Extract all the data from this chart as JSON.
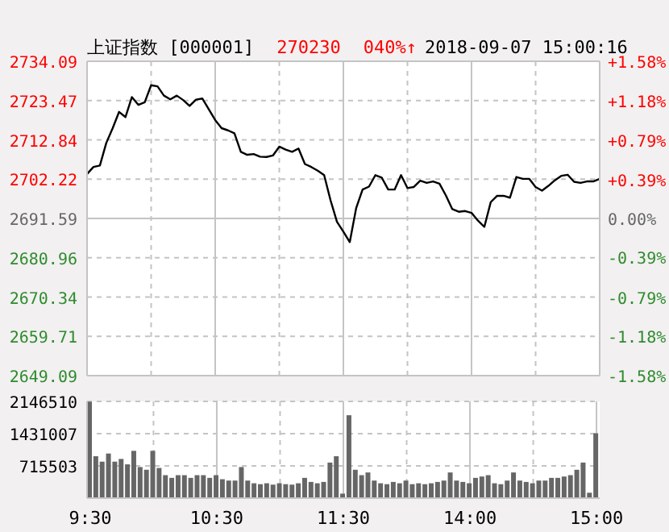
{
  "chart_data": [
    {
      "type": "line",
      "title": "上证指数 [000001]",
      "annotations": [
        "270230",
        "040%↑",
        "2018-09-07 15:00:16"
      ],
      "categories": [
        null,
        null,
        null,
        null,
        null,
        null,
        null,
        null,
        null,
        null,
        null,
        null,
        null,
        null,
        null,
        null,
        null,
        null,
        null,
        null,
        null,
        null,
        null,
        null,
        null,
        null,
        null,
        null,
        null,
        null,
        null,
        null,
        null,
        null,
        null,
        null,
        null,
        null,
        null,
        null,
        null,
        null,
        null,
        null,
        null,
        null,
        null,
        null,
        null,
        null,
        null,
        null,
        null,
        null,
        null,
        null,
        null,
        null,
        null,
        null,
        null,
        null,
        null,
        null,
        null,
        null,
        null,
        null,
        null,
        null,
        null,
        null,
        null,
        null,
        null,
        null,
        null,
        null,
        null,
        null,
        null
      ],
      "series": [
        {
          "color": "#000000",
          "values": [
            2703.6,
            2705.5,
            2705.9,
            2712.0,
            2716.0,
            2720.4,
            2719.0,
            2724.4,
            2722.3,
            2723.0,
            2727.6,
            2727.3,
            2724.8,
            2723.8,
            2724.8,
            2723.6,
            2722.0,
            2723.7,
            2724.0,
            2721.1,
            2718.2,
            2716.0,
            2715.4,
            2714.6,
            2709.6,
            2708.8,
            2709.0,
            2708.3,
            2708.2,
            2708.6,
            2711.0,
            2710.2,
            2709.6,
            2710.5,
            2706.3,
            2705.5,
            2704.5,
            2703.3,
            2696.5,
            2690.7,
            2688.0,
            2685.2,
            2694.4,
            2699.4,
            2700.2,
            2703.3,
            2702.6,
            2699.4,
            2699.4,
            2703.3,
            2699.8,
            2700.1,
            2701.8,
            2701.2,
            2701.6,
            2701.0,
            2697.8,
            2694.1,
            2693.4,
            2693.6,
            2693.1,
            2691.0,
            2689.3,
            2696.0,
            2697.7,
            2697.7,
            2697.2,
            2702.8,
            2702.3,
            2702.3,
            2700.1,
            2699.1,
            2700.4,
            2701.9,
            2703.1,
            2703.4,
            2701.5,
            2701.2,
            2701.6,
            2701.6,
            2702.3
          ]
        }
      ],
      "ylim": [
        2649.09,
        2734.09
      ],
      "yticks": [
        2649.09,
        2659.71,
        2670.34,
        2680.96,
        2691.59,
        2702.22,
        2712.84,
        2723.47,
        2734.09
      ],
      "y2lim": [
        -1.58,
        1.58
      ],
      "y2ticks": [
        {
          "value": -1.58,
          "label": "-1.58%"
        },
        {
          "value": -1.18,
          "label": "-1.18%"
        },
        {
          "value": -0.79,
          "label": "-0.79%"
        },
        {
          "value": -0.39,
          "label": "-0.39%"
        },
        {
          "value": 0,
          "label": "0.00%"
        },
        {
          "value": 0.39,
          "label": "+0.39%"
        },
        {
          "value": 0.79,
          "label": "+0.79%"
        },
        {
          "value": 1.18,
          "label": "+1.18%"
        },
        {
          "value": 1.58,
          "label": "+1.58%"
        }
      ],
      "grid": true
    },
    {
      "type": "bar",
      "color": "#666666",
      "categories": [
        "9:30",
        null,
        null,
        null,
        null,
        null,
        null,
        null,
        null,
        null,
        null,
        null,
        null,
        null,
        null,
        null,
        null,
        null,
        null,
        null,
        "10:30",
        null,
        null,
        null,
        null,
        null,
        null,
        null,
        null,
        null,
        null,
        null,
        null,
        null,
        null,
        null,
        null,
        null,
        null,
        null,
        "11:30",
        null,
        null,
        null,
        null,
        null,
        null,
        null,
        null,
        null,
        null,
        null,
        null,
        null,
        null,
        null,
        null,
        null,
        null,
        null,
        "14:00",
        null,
        null,
        null,
        null,
        null,
        null,
        null,
        null,
        null,
        null,
        null,
        null,
        null,
        null,
        null,
        null,
        null,
        null,
        null,
        "15:00"
      ],
      "values": [
        2140000,
        930000,
        810000,
        990000,
        810000,
        870000,
        750000,
        1050000,
        690000,
        630000,
        1050000,
        670000,
        510000,
        450000,
        510000,
        510000,
        450000,
        510000,
        510000,
        450000,
        510000,
        420000,
        390000,
        390000,
        690000,
        390000,
        330000,
        310000,
        330000,
        300000,
        330000,
        310000,
        300000,
        330000,
        450000,
        360000,
        330000,
        360000,
        790000,
        930000,
        100000,
        1840000,
        630000,
        510000,
        570000,
        390000,
        330000,
        310000,
        360000,
        330000,
        390000,
        310000,
        330000,
        310000,
        330000,
        360000,
        390000,
        570000,
        390000,
        360000,
        330000,
        450000,
        480000,
        510000,
        330000,
        310000,
        390000,
        570000,
        390000,
        360000,
        330000,
        390000,
        390000,
        450000,
        450000,
        480000,
        510000,
        630000,
        790000,
        120000,
        1440000
      ],
      "ylim": [
        0,
        2146510
      ],
      "yticks": [
        715503,
        1431007,
        2146510
      ],
      "grid": true
    }
  ]
}
